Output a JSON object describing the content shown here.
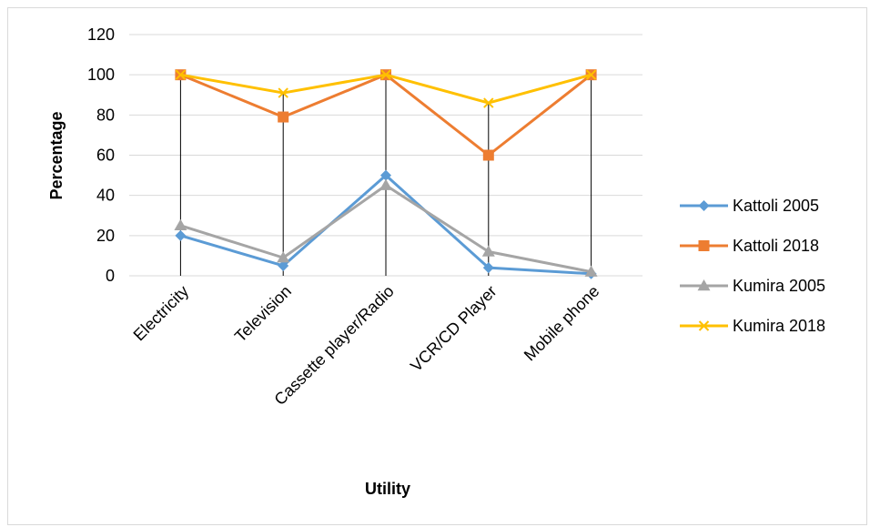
{
  "chart_data": {
    "type": "line",
    "categories": [
      "Electricity",
      "Television",
      "Cassette player/Radio",
      "VCR/CD Player",
      "Mobile phone"
    ],
    "series": [
      {
        "name": "Kattoli 2005",
        "values": [
          20,
          5,
          50,
          4,
          1
        ],
        "color": "#5b9bd5",
        "marker": "diamond"
      },
      {
        "name": "Kattoli 2018",
        "values": [
          100,
          79,
          100,
          60,
          100
        ],
        "color": "#ed7d31",
        "marker": "square"
      },
      {
        "name": "Kumira 2005",
        "values": [
          25,
          9,
          45,
          12,
          2
        ],
        "color": "#a5a5a5",
        "marker": "triangle"
      },
      {
        "name": "Kumira 2018",
        "values": [
          100,
          91,
          100,
          86,
          100
        ],
        "color": "#ffc000",
        "marker": "x"
      }
    ],
    "xlabel": "Utility",
    "ylabel": "Percentage",
    "ylim": [
      0,
      120
    ],
    "yticks": [
      0,
      20,
      40,
      60,
      80,
      100,
      120
    ],
    "grid": "horizontal",
    "drop_lines": true,
    "legend_position": "right"
  }
}
